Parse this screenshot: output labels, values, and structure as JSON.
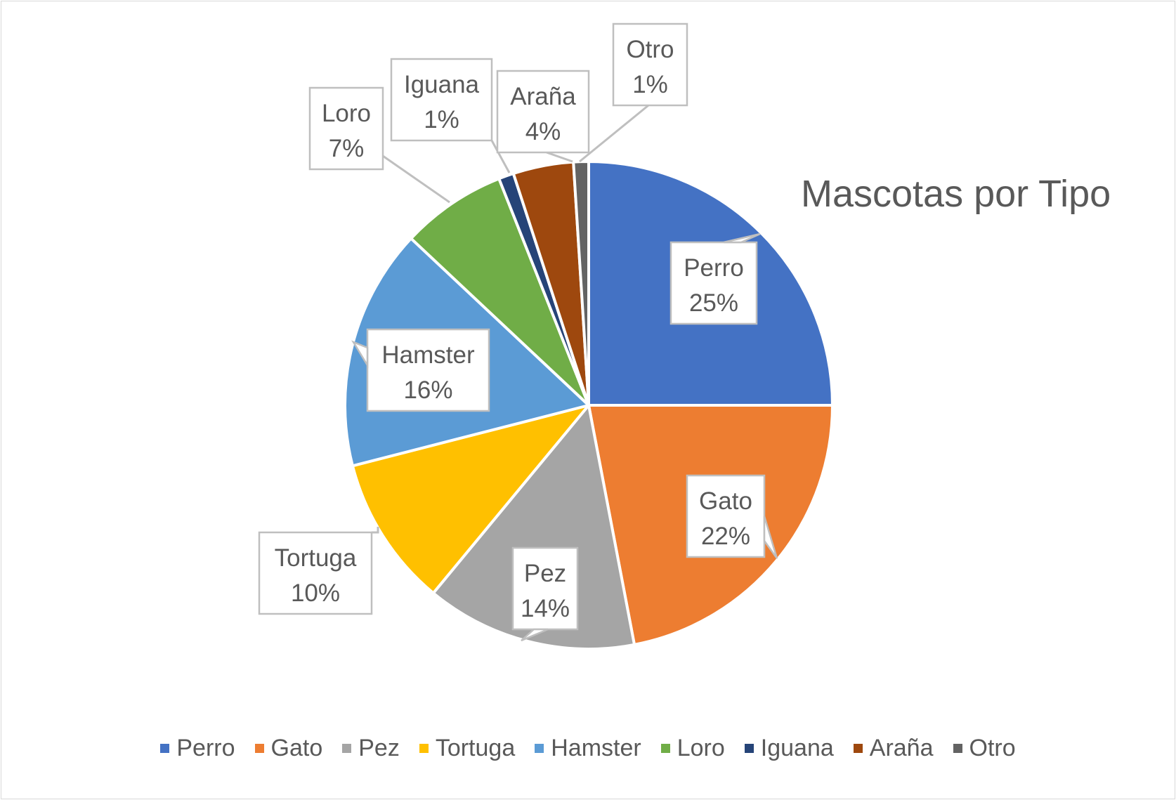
{
  "chart_data": {
    "type": "pie",
    "title": "Mascotas por Tipo",
    "categories": [
      "Perro",
      "Gato",
      "Pez",
      "Tortuga",
      "Hamster",
      "Loro",
      "Iguana",
      "Araña",
      "Otro"
    ],
    "values": [
      25,
      22,
      14,
      10,
      16,
      7,
      1,
      4,
      1
    ],
    "value_labels": [
      "25%",
      "22%",
      "14%",
      "10%",
      "16%",
      "7%",
      "1%",
      "4%",
      "1%"
    ],
    "colors": [
      "#4472c4",
      "#ed7d31",
      "#a5a5a5",
      "#ffc000",
      "#5b9bd5",
      "#70ad47",
      "#264478",
      "#9e480e",
      "#636363"
    ],
    "legend_position": "bottom",
    "start_angle": "12 o'clock, clockwise"
  }
}
